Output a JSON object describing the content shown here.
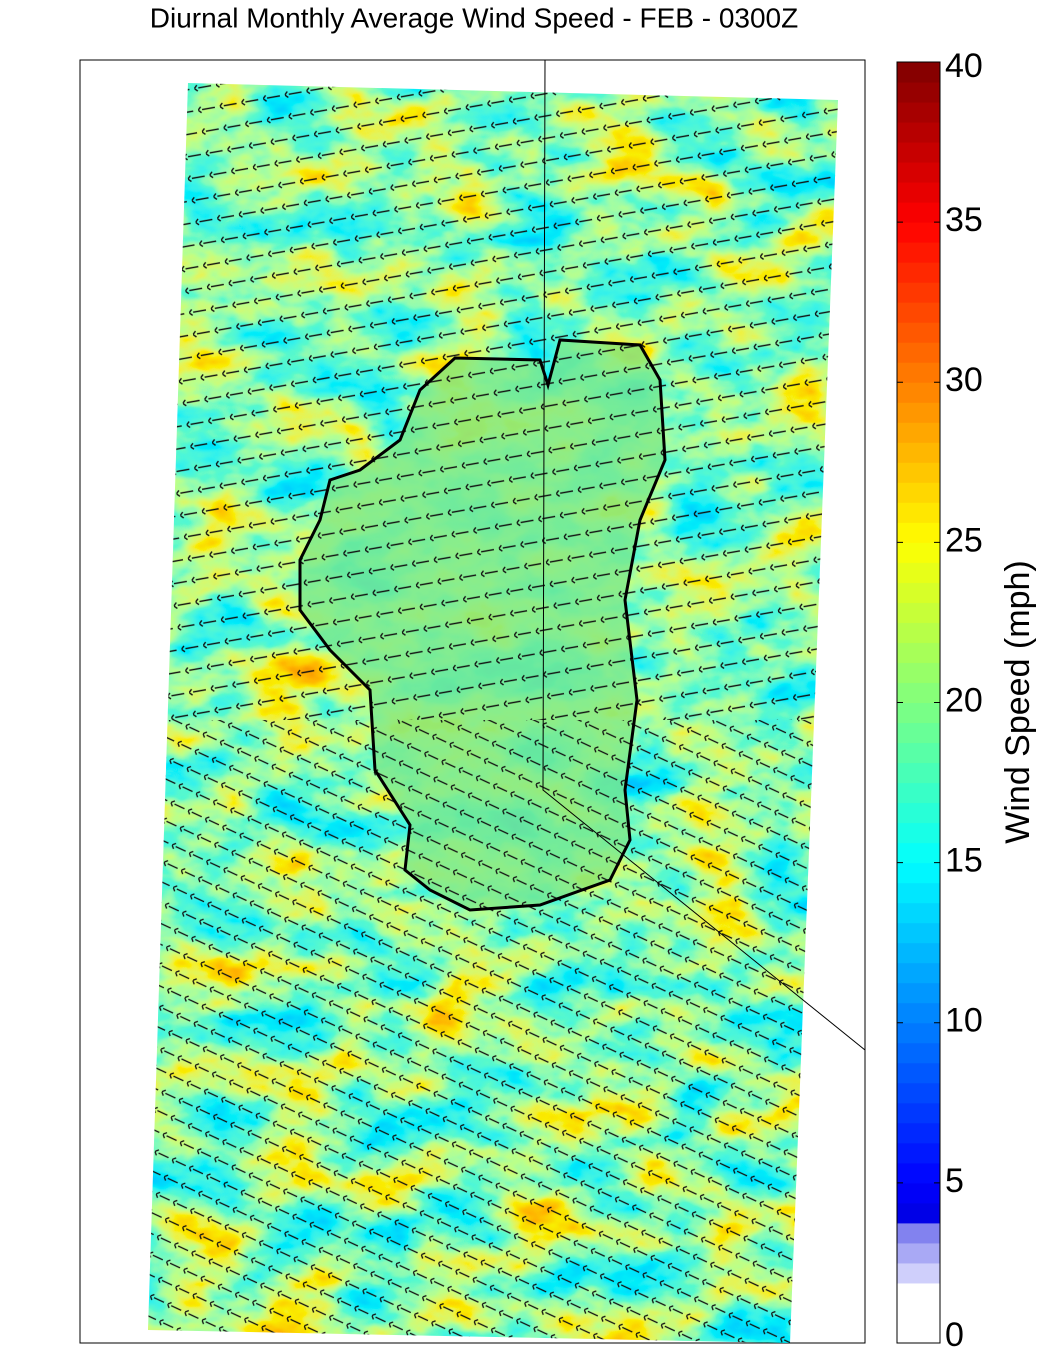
{
  "title": "Diurnal Monthly Average Wind Speed - FEB - 0300Z",
  "colorbar": {
    "label": "Wind Speed (mph)",
    "lim": [
      0,
      40
    ],
    "ticks": [
      0,
      5,
      10,
      15,
      20,
      25,
      30,
      35,
      40
    ]
  }
}
